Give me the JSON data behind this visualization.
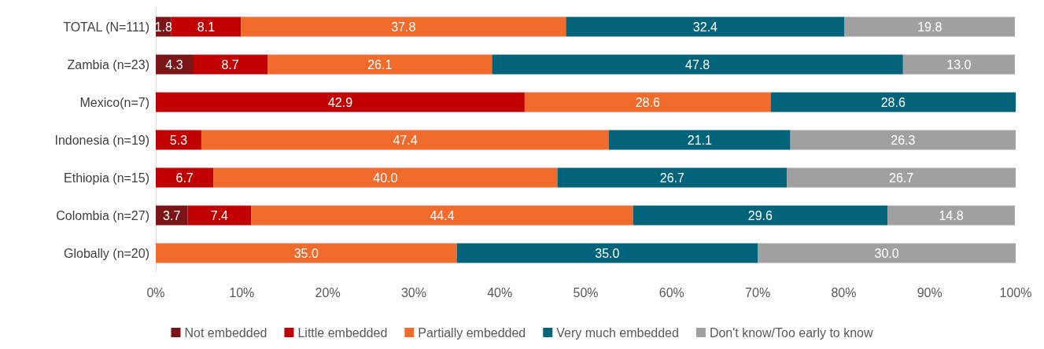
{
  "chart_data": {
    "type": "bar",
    "orientation": "horizontal",
    "stacked": true,
    "legend": "bottom",
    "grid": false,
    "categories": [
      "TOTAL (N=111)",
      "Zambia (n=23)",
      "Mexico(n=7)",
      "Indonesia (n=19)",
      "Ethiopia (n=15)",
      "Colombia (n=27)",
      "Globally (n=20)"
    ],
    "xlim": [
      0,
      100
    ],
    "xticks": [
      {
        "value": 0,
        "label": "0%"
      },
      {
        "value": 10,
        "label": "10%"
      },
      {
        "value": 20,
        "label": "20%"
      },
      {
        "value": 30,
        "label": "30%"
      },
      {
        "value": 40,
        "label": "40%"
      },
      {
        "value": 50,
        "label": "50%"
      },
      {
        "value": 60,
        "label": "60%"
      },
      {
        "value": 70,
        "label": "70%"
      },
      {
        "value": 80,
        "label": "80%"
      },
      {
        "value": 90,
        "label": "90%"
      },
      {
        "value": 100,
        "label": "100%"
      }
    ],
    "series": [
      {
        "name": "Not embedded",
        "color": "#7a1416",
        "values": [
          1.8,
          4.3,
          null,
          null,
          null,
          3.7,
          null
        ],
        "value_labels": [
          "1.8",
          "4.3",
          null,
          null,
          null,
          "3.7",
          null
        ]
      },
      {
        "name": "Little embedded",
        "color": "#c00000",
        "values": [
          8.1,
          8.7,
          42.9,
          5.3,
          6.7,
          7.4,
          null
        ],
        "value_labels": [
          "8.1",
          "8.7",
          "42.9",
          "5.3",
          "6.7",
          "7.4",
          null
        ]
      },
      {
        "name": "Partially embedded",
        "color": "#f06b2c",
        "values": [
          37.8,
          26.1,
          28.6,
          47.4,
          40.0,
          44.4,
          35.0
        ],
        "value_labels": [
          "37.8",
          "26.1",
          "28.6",
          "47.4",
          "40.0",
          "44.4",
          "35.0"
        ]
      },
      {
        "name": "Very much embedded",
        "color": "#00637a",
        "values": [
          32.4,
          47.8,
          28.6,
          21.1,
          26.7,
          29.6,
          35.0
        ],
        "value_labels": [
          "32.4",
          "47.8",
          "28.6",
          "21.1",
          "26.7",
          "29.6",
          "35.0"
        ]
      },
      {
        "name": "Don't know/Too early to know",
        "color": "#a0a0a0",
        "values": [
          19.8,
          13.0,
          null,
          26.3,
          26.7,
          14.8,
          30.0
        ],
        "value_labels": [
          "19.8",
          "13.0",
          null,
          "26.3",
          "26.7",
          "14.8",
          "30.0"
        ]
      }
    ]
  }
}
